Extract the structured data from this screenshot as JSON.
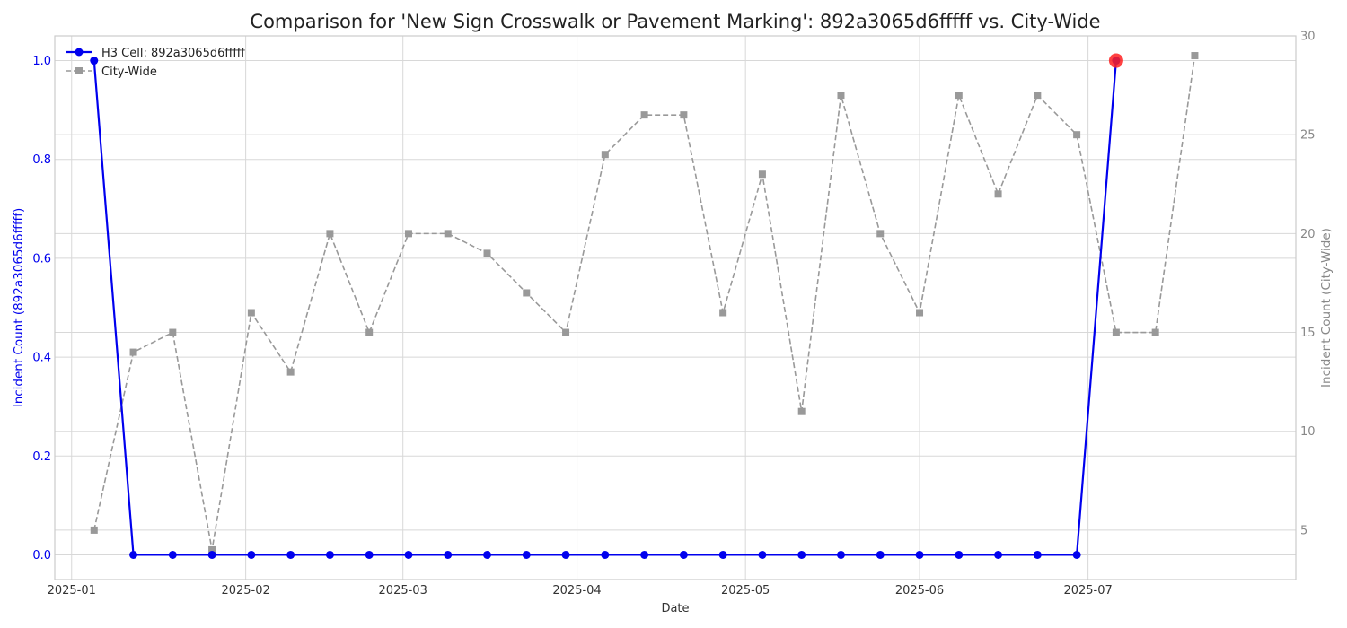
{
  "chart_data": {
    "type": "line",
    "title": "Comparison for 'New Sign  Crosswalk or Pavement Marking': 892a3065d6fffff vs. City-Wide",
    "xlabel": "Date",
    "ylabel_left": "Incident Count (892a3065d6fffff)",
    "ylabel_right": "Incident Count (City-Wide)",
    "x_ticks": [
      "2025-01",
      "2025-02",
      "2025-03",
      "2025-04",
      "2025-05",
      "2025-06",
      "2025-07"
    ],
    "y_left_ticks": [
      "0.0",
      "0.2",
      "0.4",
      "0.6",
      "0.8",
      "1.0"
    ],
    "y_right_ticks": [
      "5",
      "10",
      "15",
      "20",
      "25",
      "30"
    ],
    "ylim_left": [
      -0.05,
      1.05
    ],
    "ylim_right": [
      2.5,
      30
    ],
    "xlim": [
      "2024-12-29",
      "2025-08-07"
    ],
    "grid": true,
    "legend_position": "top-left",
    "x": [
      "2025-01-05",
      "2025-01-12",
      "2025-01-19",
      "2025-01-26",
      "2025-02-02",
      "2025-02-09",
      "2025-02-16",
      "2025-02-23",
      "2025-03-02",
      "2025-03-09",
      "2025-03-16",
      "2025-03-23",
      "2025-03-30",
      "2025-04-06",
      "2025-04-13",
      "2025-04-20",
      "2025-04-27",
      "2025-05-04",
      "2025-05-11",
      "2025-05-18",
      "2025-05-25",
      "2025-06-01",
      "2025-06-08",
      "2025-06-15",
      "2025-06-22",
      "2025-06-29",
      "2025-07-06",
      "2025-07-13",
      "2025-07-20"
    ],
    "series": [
      {
        "name": "H3 Cell: 892a3065d6fffff",
        "axis": "left",
        "color": "#0000ee",
        "values": [
          1,
          0,
          0,
          0,
          0,
          0,
          0,
          0,
          0,
          0,
          0,
          0,
          0,
          0,
          0,
          0,
          0,
          0,
          0,
          0,
          0,
          0,
          0,
          0,
          0,
          0,
          1,
          null,
          null
        ]
      },
      {
        "name": "City-Wide",
        "axis": "right",
        "color": "#999999",
        "values": [
          5,
          14,
          15,
          4,
          16,
          13,
          20,
          15,
          20,
          20,
          19,
          17,
          15,
          24,
          26,
          26,
          16,
          23,
          11,
          27,
          20,
          16,
          27,
          22,
          27,
          25,
          15,
          15,
          29
        ]
      }
    ],
    "highlight": {
      "series": "H3 Cell: 892a3065d6fffff",
      "x": "2025-07-06",
      "value": 1,
      "color": "#ff2020"
    }
  }
}
